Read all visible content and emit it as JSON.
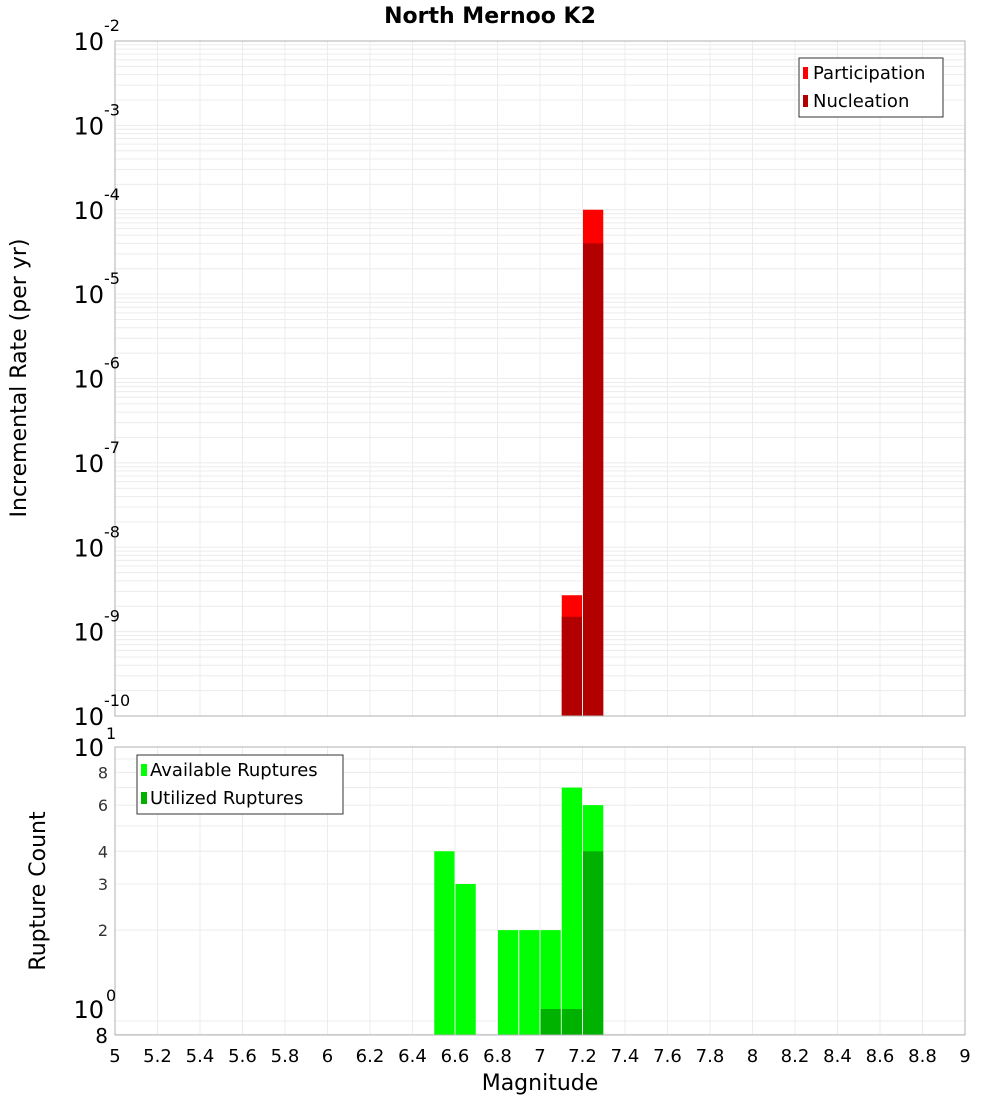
{
  "chart_data": [
    {
      "type": "bar",
      "title": "North Mernoo K2",
      "xlabel": "Magnitude",
      "ylabel": "Incremental Rate (per yr)",
      "yscale": "log",
      "ylim": [
        1e-10,
        0.01
      ],
      "xlim": [
        5,
        9
      ],
      "grid": true,
      "legend_position": "top-right",
      "y_ticks": [
        "10^-2",
        "10^-3",
        "10^-4",
        "10^-5",
        "10^-6",
        "10^-7",
        "10^-8",
        "10^-9",
        "10^-10"
      ],
      "bin_width": 0.1,
      "series": [
        {
          "name": "Participation",
          "color": "#ff0000",
          "x": [
            7.15,
            7.25
          ],
          "values": [
            2.7e-09,
            0.0001
          ]
        },
        {
          "name": "Nucleation",
          "color": "#b20000",
          "x": [
            7.15,
            7.25
          ],
          "values": [
            1.5e-09,
            4e-05
          ]
        }
      ]
    },
    {
      "type": "bar",
      "title": "",
      "xlabel": "Magnitude",
      "ylabel": "Rupture Count",
      "yscale": "log",
      "ylim": [
        0.8,
        10
      ],
      "xlim": [
        5,
        9
      ],
      "grid": true,
      "legend_position": "top-left",
      "y_ticks": [
        "10^1",
        "8",
        "6",
        "4",
        "3",
        "2",
        "10^0",
        "8"
      ],
      "x_ticks": [
        "5",
        "5.2",
        "5.4",
        "5.6",
        "5.8",
        "6",
        "6.2",
        "6.4",
        "6.6",
        "6.8",
        "7",
        "7.2",
        "7.4",
        "7.6",
        "7.8",
        "8",
        "8.2",
        "8.4",
        "8.6",
        "8.8",
        "9"
      ],
      "bin_width": 0.1,
      "series": [
        {
          "name": "Available Ruptures",
          "color": "#00ff00",
          "x": [
            6.55,
            6.65,
            6.85,
            6.95,
            7.05,
            7.15,
            7.25
          ],
          "values": [
            4,
            3,
            2,
            2,
            2,
            7,
            6
          ]
        },
        {
          "name": "Utilized Ruptures",
          "color": "#00b200",
          "x": [
            7.05,
            7.15,
            7.25
          ],
          "values": [
            1,
            1,
            4
          ]
        }
      ]
    }
  ],
  "text": {
    "title": "North Mernoo K2",
    "top_ylabel": "Incremental Rate (per yr)",
    "bottom_ylabel": "Rupture Count",
    "xlabel": "Magnitude",
    "legend_top": [
      "Participation",
      "Nucleation"
    ],
    "legend_bottom": [
      "Available Ruptures",
      "Utilized Ruptures"
    ]
  }
}
